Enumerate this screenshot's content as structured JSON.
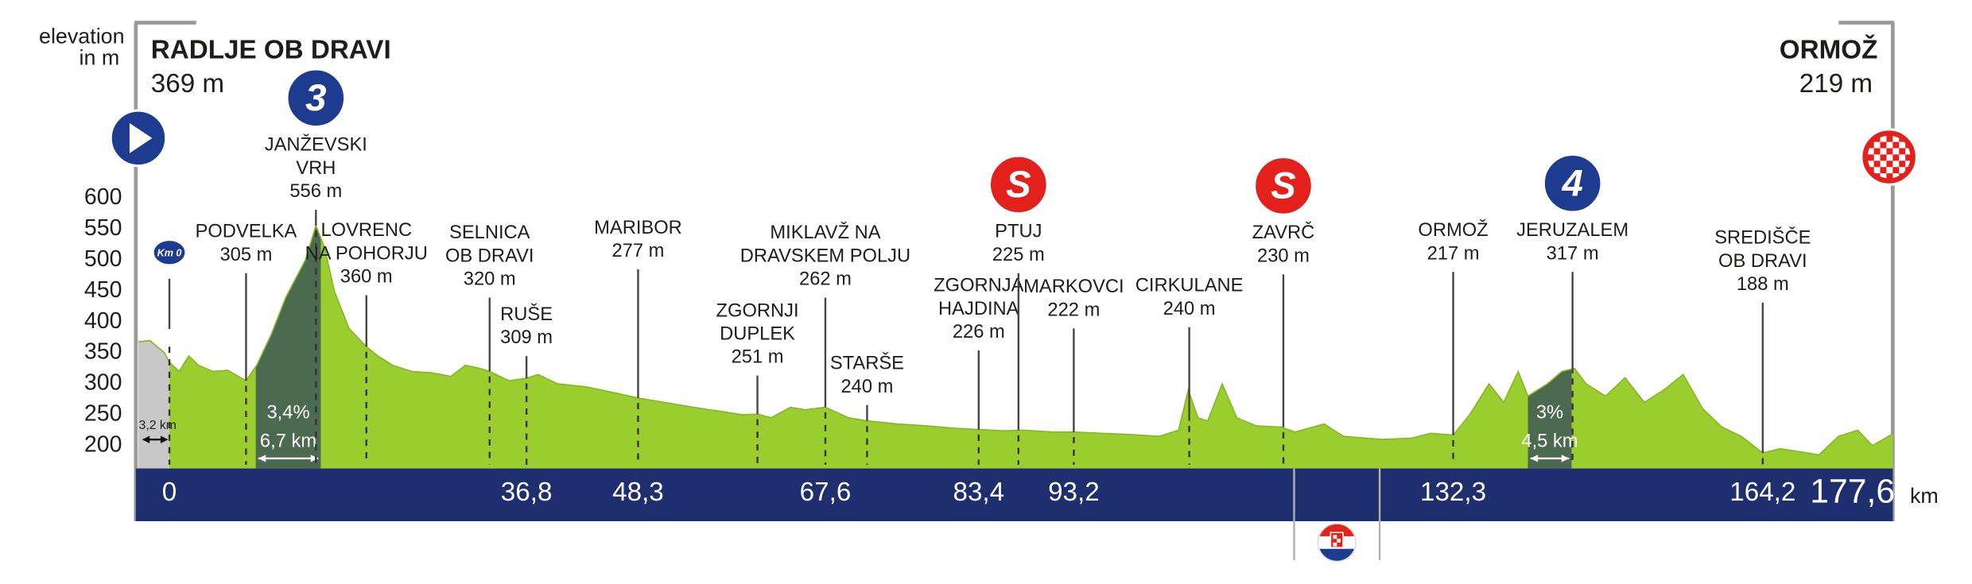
{
  "chart_data": {
    "type": "elevation-profile",
    "ylabel": [
      "elevation",
      "in m"
    ],
    "start": {
      "name": "RADLJE OB DRAVI",
      "elevation": {
        "value": 369,
        "label": "369 m"
      }
    },
    "finish": {
      "name": "ORMOŽ",
      "elevation": {
        "value": 219,
        "label": "219 m"
      }
    },
    "x_unit": "km",
    "xlim": [
      -3.2,
      177.6
    ],
    "xticks": [
      0,
      {
        "value": 36.8,
        "label": "36,8"
      },
      {
        "value": 48.3,
        "label": "48,3"
      },
      {
        "value": 67.6,
        "label": "67,6"
      },
      {
        "value": 83.4,
        "label": "83,4"
      },
      {
        "value": 93.2,
        "label": "93,2"
      },
      {
        "value": 132.3,
        "label": "132,3"
      },
      {
        "value": 164.2,
        "label": "164,2"
      },
      {
        "value": 177.6,
        "label": "177,6"
      }
    ],
    "ylim": [
      163,
      600
    ],
    "yticks": [
      200,
      250,
      300,
      350,
      400,
      450,
      500,
      550,
      600
    ],
    "color": "#9acd2e",
    "x": [
      -3.2,
      -2,
      -0.5,
      0,
      1,
      2,
      3,
      4.5,
      6,
      7.9,
      9,
      10.5,
      12,
      13,
      14,
      15.1,
      16,
      17,
      18.5,
      20.3,
      21.5,
      23,
      25,
      27,
      29,
      30.5,
      32,
      33,
      35,
      36.8,
      38,
      40,
      43,
      46,
      48.3,
      51,
      54,
      57,
      59,
      60.6,
      62,
      64,
      65.5,
      67.6,
      70,
      71.9,
      75,
      78,
      81,
      83.4,
      86,
      88,
      91,
      93.2,
      96,
      99,
      102,
      104,
      105,
      106,
      107,
      108.5,
      110,
      112,
      114.6,
      116,
      119,
      121,
      125,
      128,
      130,
      132.3,
      134,
      136,
      137.5,
      139,
      140,
      142,
      143.5,
      144.8,
      146,
      148,
      150,
      152,
      154,
      156,
      158,
      160,
      162,
      164.2,
      166,
      168,
      170,
      172,
      174,
      175.5,
      177.6
    ],
    "values": [
      368,
      370,
      350,
      335,
      320,
      345,
      330,
      320,
      322,
      305,
      330,
      380,
      440,
      470,
      500,
      556,
      520,
      450,
      390,
      360,
      345,
      330,
      320,
      318,
      312,
      330,
      325,
      320,
      305,
      309,
      315,
      300,
      295,
      285,
      277,
      270,
      262,
      255,
      250,
      251,
      245,
      262,
      258,
      262,
      245,
      240,
      235,
      232,
      228,
      226,
      224,
      225,
      222,
      222,
      220,
      218,
      215,
      225,
      290,
      245,
      240,
      300,
      245,
      232,
      230,
      222,
      235,
      215,
      210,
      212,
      220,
      217,
      250,
      300,
      270,
      320,
      280,
      300,
      320,
      325,
      300,
      280,
      310,
      270,
      290,
      315,
      260,
      230,
      215,
      188,
      195,
      190,
      185,
      215,
      225,
      200,
      219
    ],
    "neutral": {
      "label": "3,2 km",
      "km_range": [
        -3.2,
        0
      ],
      "color": "#c8c8c8"
    },
    "km0_badge": "Km 0",
    "climbs": [
      {
        "gradient": "3,4%",
        "length": "6,7 km",
        "km_range": [
          8.9,
          15.6
        ]
      },
      {
        "gradient": "3%",
        "length": "4,5 km",
        "km_range": [
          140.0,
          144.5
        ]
      }
    ],
    "climb_color": "#4b6a4f",
    "icon_colors": {
      "climb": "#1d3c8f",
      "sprint": "#e3211c"
    },
    "landmarks": [
      {
        "name": [
          "PODVELKA"
        ],
        "elevation": {
          "value": 305,
          "label": "305 m"
        },
        "km": 7.9
      },
      {
        "name": [
          "JANŽEVSKI",
          "VRH"
        ],
        "elevation": {
          "value": 556,
          "label": "556 m"
        },
        "km": 15.1,
        "icon": "3",
        "icon_kind": "climb"
      },
      {
        "name": [
          "LOVRENC",
          "NA POHORJU"
        ],
        "elevation": {
          "value": 360,
          "label": "360 m"
        },
        "km": 20.3
      },
      {
        "name": [
          "SELNICA",
          "OB DRAVI"
        ],
        "elevation": {
          "value": 320,
          "label": "320 m"
        },
        "km": 33.0
      },
      {
        "name": [
          "RUŠE"
        ],
        "elevation": {
          "value": 309,
          "label": "309 m"
        },
        "km": 36.8
      },
      {
        "name": [
          "MARIBOR"
        ],
        "elevation": {
          "value": 277,
          "label": "277 m"
        },
        "km": 48.3
      },
      {
        "name": [
          "ZGORNJI",
          "DUPLEK"
        ],
        "elevation": {
          "value": 251,
          "label": "251 m"
        },
        "km": 60.6
      },
      {
        "name": [
          "MIKLAVŽ NA",
          "DRAVSKEM POLJU"
        ],
        "elevation": {
          "value": 262,
          "label": "262 m"
        },
        "km": 67.6
      },
      {
        "name": [
          "STARŠE"
        ],
        "elevation": {
          "value": 240,
          "label": "240 m"
        },
        "km": 71.9
      },
      {
        "name": [
          "ZGORNJA",
          "HAJDINA"
        ],
        "elevation": {
          "value": 226,
          "label": "226 m"
        },
        "km": 83.4
      },
      {
        "name": [
          "PTUJ"
        ],
        "elevation": {
          "value": 225,
          "label": "225 m"
        },
        "km": 87.5,
        "icon": "S",
        "icon_kind": "sprint"
      },
      {
        "name": [
          "MARKOVCI"
        ],
        "elevation": {
          "value": 222,
          "label": "222 m"
        },
        "km": 93.2
      },
      {
        "name": [
          "CIRKULANE"
        ],
        "elevation": {
          "value": 240,
          "label": "240 m"
        },
        "km": 105.1
      },
      {
        "name": [
          "ZAVRČ"
        ],
        "elevation": {
          "value": 230,
          "label": "230 m"
        },
        "km": 114.8,
        "icon": "S",
        "icon_kind": "sprint"
      },
      {
        "name": [
          "ORMOŽ"
        ],
        "elevation": {
          "value": 217,
          "label": "217 m"
        },
        "km": 132.3
      },
      {
        "name": [
          "JERUZALEM"
        ],
        "elevation": {
          "value": 317,
          "label": "317 m"
        },
        "km": 144.6,
        "icon": "4",
        "icon_kind": "climb"
      },
      {
        "name": [
          "SREDIŠČE",
          "OB DRAVI"
        ],
        "elevation": {
          "value": 188,
          "label": "188 m"
        },
        "km": 164.2
      }
    ]
  }
}
